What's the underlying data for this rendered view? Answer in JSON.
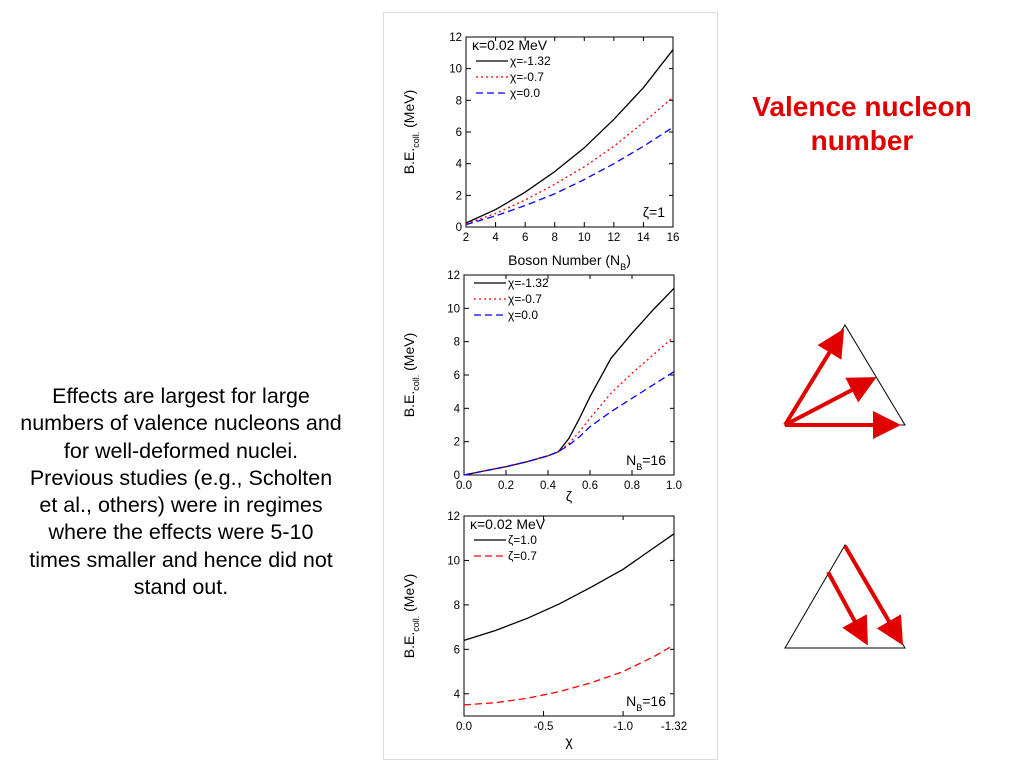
{
  "text": {
    "description": "Effects are largest for large numbers of valence nucleons and for well-deformed nuclei. Previous studies (e.g., Scholten et al., others) were in regimes where the effects were 5-10 times smaller and hence did not stand out.",
    "title": "Valence nucleon number"
  },
  "colors": {
    "accent": "#e00000",
    "black": "#000000",
    "red": "#ff0000",
    "blue": "#0000ff"
  },
  "chart_data": [
    {
      "type": "line",
      "ylabel": "B.E.coll. (MeV)",
      "xlabel": "Boson Number (NB)",
      "xlim": [
        2,
        16
      ],
      "ylim": [
        0,
        12
      ],
      "xticks": [
        "2",
        "4",
        "6",
        "8",
        "10",
        "12",
        "14",
        "16"
      ],
      "yticks": [
        "0",
        "2",
        "4",
        "6",
        "8",
        "10",
        "12"
      ],
      "annotation_top": "κ=0.02 MeV",
      "annotation_corner": "ζ=1",
      "legend_position": "top-left",
      "series": [
        {
          "name": "χ=-1.32",
          "style": "solid",
          "color": "#000000",
          "x": [
            2,
            4,
            6,
            8,
            10,
            12,
            14,
            16
          ],
          "y": [
            0.25,
            1.1,
            2.2,
            3.5,
            5.0,
            6.8,
            8.8,
            11.2
          ]
        },
        {
          "name": "χ=-0.7",
          "style": "dotted",
          "color": "#ff0000",
          "x": [
            2,
            4,
            6,
            8,
            10,
            12,
            14,
            16
          ],
          "y": [
            0.2,
            0.85,
            1.7,
            2.7,
            3.8,
            5.1,
            6.6,
            8.2
          ]
        },
        {
          "name": "χ=0.0",
          "style": "dashed",
          "color": "#0000ff",
          "x": [
            2,
            4,
            6,
            8,
            10,
            12,
            14,
            16
          ],
          "y": [
            0.15,
            0.7,
            1.35,
            2.1,
            3.0,
            4.0,
            5.1,
            6.3
          ]
        }
      ]
    },
    {
      "type": "line",
      "ylabel": "B.E.coll. (MeV)",
      "xlabel": "ζ",
      "xlim": [
        0,
        1
      ],
      "ylim": [
        0,
        12
      ],
      "xticks": [
        "0.0",
        "0.2",
        "0.4",
        "0.6",
        "0.8",
        "1.0"
      ],
      "yticks": [
        "0",
        "2",
        "4",
        "6",
        "8",
        "10",
        "12"
      ],
      "annotation_corner": "NB=16",
      "legend_position": "top-left",
      "series": [
        {
          "name": "χ=-1.32",
          "style": "solid",
          "color": "#000000",
          "x": [
            0,
            0.1,
            0.2,
            0.3,
            0.4,
            0.45,
            0.5,
            0.55,
            0.6,
            0.7,
            0.8,
            0.9,
            1.0
          ],
          "y": [
            0,
            0.25,
            0.5,
            0.8,
            1.15,
            1.4,
            2.2,
            3.4,
            4.7,
            7.0,
            8.5,
            9.9,
            11.2
          ]
        },
        {
          "name": "χ=-0.7",
          "style": "dotted",
          "color": "#ff0000",
          "x": [
            0,
            0.1,
            0.2,
            0.3,
            0.4,
            0.45,
            0.5,
            0.55,
            0.6,
            0.7,
            0.8,
            0.9,
            1.0
          ],
          "y": [
            0,
            0.25,
            0.5,
            0.8,
            1.15,
            1.4,
            1.9,
            2.6,
            3.4,
            4.9,
            6.1,
            7.2,
            8.3
          ]
        },
        {
          "name": "χ=0.0",
          "style": "dashed",
          "color": "#0000ff",
          "x": [
            0,
            0.1,
            0.2,
            0.3,
            0.4,
            0.45,
            0.5,
            0.55,
            0.6,
            0.7,
            0.8,
            0.9,
            1.0
          ],
          "y": [
            0,
            0.25,
            0.5,
            0.8,
            1.15,
            1.4,
            1.8,
            2.3,
            2.9,
            3.8,
            4.6,
            5.4,
            6.2
          ]
        }
      ]
    },
    {
      "type": "line",
      "ylabel": "B.E.coll. (MeV)",
      "xlabel": "χ",
      "xlim": [
        0,
        1.32
      ],
      "ylim": [
        3,
        12
      ],
      "xticks": [
        {
          "value": 0,
          "label": "0.0"
        },
        {
          "value": 0.5,
          "label": "-0.5"
        },
        {
          "value": 1.0,
          "label": "-1.0"
        },
        {
          "value": 1.32,
          "label": "-1.32"
        }
      ],
      "yticks": [
        "4",
        "6",
        "8",
        "10",
        "12"
      ],
      "annotation_top": "κ=0.02 MeV",
      "annotation_corner": "NB=16",
      "legend_position": "top-left",
      "series": [
        {
          "name": "ζ=1.0",
          "style": "solid",
          "color": "#000000",
          "x": [
            0,
            0.2,
            0.4,
            0.6,
            0.8,
            1.0,
            1.2,
            1.32
          ],
          "y": [
            6.4,
            6.85,
            7.4,
            8.05,
            8.8,
            9.6,
            10.6,
            11.2
          ]
        },
        {
          "name": "ζ=0.7",
          "style": "dashed",
          "color": "#ff0000",
          "x": [
            0,
            0.2,
            0.4,
            0.6,
            0.8,
            1.0,
            1.2,
            1.32
          ],
          "y": [
            3.5,
            3.6,
            3.8,
            4.1,
            4.5,
            5.0,
            5.7,
            6.2
          ]
        }
      ]
    }
  ]
}
